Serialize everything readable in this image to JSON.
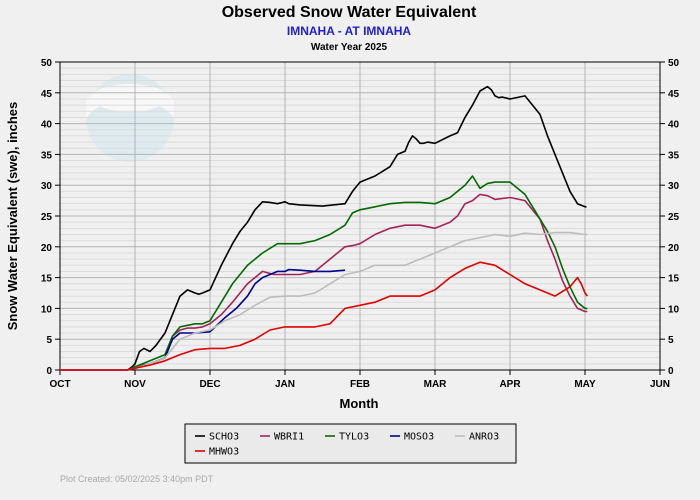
{
  "chart_data": {
    "type": "line",
    "title": "Observed Snow Water Equivalent",
    "subtitle": "IMNAHA - AT IMNAHA",
    "subtitle2": "Water Year 2025",
    "xlabel": "Month",
    "ylabel": "Snow Water Equivalent (swe),  inches",
    "categories": [
      "OCT",
      "NOV",
      "DEC",
      "JAN",
      "FEB",
      "MAR",
      "APR",
      "MAY",
      "JUN"
    ],
    "ylim": [
      0,
      50
    ],
    "y_ticks": [
      0,
      5,
      10,
      15,
      20,
      25,
      30,
      35,
      40,
      45,
      50
    ],
    "grid": true,
    "legend_position": "bottom",
    "footer": "Plot Created: 05/02/2025 3:40pm PDT",
    "series": [
      {
        "name": "SCHO3",
        "color": "#000000",
        "x": [
          0,
          0.9,
          0.96,
          1.0,
          1.06,
          1.12,
          1.2,
          1.28,
          1.4,
          1.5,
          1.6,
          1.7,
          1.8,
          1.85,
          1.9,
          2.0,
          2.15,
          2.3,
          2.4,
          2.5,
          2.6,
          2.7,
          2.8,
          2.9,
          3.0,
          3.05,
          3.2,
          3.5,
          3.8,
          3.9,
          4.0,
          4.2,
          4.4,
          4.5,
          4.6,
          4.65,
          4.7,
          4.75,
          4.8,
          4.85,
          4.9,
          5.0,
          5.2,
          5.3,
          5.4,
          5.5,
          5.6,
          5.7,
          5.75,
          5.8,
          5.85,
          5.9,
          6.0,
          6.2,
          6.3,
          6.4,
          6.5,
          6.6,
          6.7,
          6.8,
          6.9,
          7.0,
          7.02
        ],
        "values": [
          0,
          0,
          0.5,
          1,
          3,
          3.5,
          3,
          4,
          6,
          9,
          12,
          13,
          12.5,
          12.3,
          12.5,
          13,
          17,
          20.5,
          22.5,
          24,
          26,
          27.3,
          27.2,
          27,
          27.3,
          27,
          26.8,
          26.6,
          27,
          29,
          30.5,
          31.5,
          33,
          35,
          35.5,
          37,
          38,
          37.5,
          36.8,
          36.8,
          37,
          36.8,
          38,
          38.5,
          41,
          43,
          45.3,
          46,
          45.5,
          44.5,
          44.2,
          44.3,
          44,
          44.5,
          43,
          41.5,
          38,
          35,
          32,
          29,
          27,
          26.5,
          26.5
        ]
      },
      {
        "name": "WBRI1",
        "color": "#a4245a",
        "x": [
          0,
          0.9,
          1.0,
          1.2,
          1.4,
          1.5,
          1.6,
          1.7,
          1.8,
          1.9,
          2.0,
          2.15,
          2.3,
          2.5,
          2.7,
          2.85,
          3.0,
          3.2,
          3.4,
          3.6,
          3.8,
          3.9,
          4.0,
          4.2,
          4.4,
          4.6,
          4.8,
          5.0,
          5.2,
          5.3,
          5.4,
          5.5,
          5.6,
          5.7,
          5.8,
          6.0,
          6.2,
          6.4,
          6.5,
          6.6,
          6.7,
          6.8,
          6.9,
          7.0,
          7.03
        ],
        "values": [
          0,
          0,
          0.5,
          1,
          2,
          5.5,
          6.5,
          6.8,
          6.8,
          7,
          7.5,
          9,
          11,
          14,
          16,
          15.5,
          15.5,
          15.5,
          16,
          18,
          20,
          20.2,
          20.5,
          22,
          23,
          23.5,
          23.5,
          23,
          24,
          25,
          27,
          27.5,
          28.5,
          28.3,
          27.7,
          28,
          27.5,
          24.5,
          21,
          18,
          14.5,
          12,
          10,
          9.5,
          9.5
        ]
      },
      {
        "name": "TYLO3",
        "color": "#006a00",
        "x": [
          0,
          0.9,
          1.0,
          1.2,
          1.4,
          1.5,
          1.6,
          1.8,
          1.9,
          2.0,
          2.15,
          2.3,
          2.5,
          2.7,
          2.9,
          3.0,
          3.2,
          3.4,
          3.6,
          3.8,
          3.9,
          4.0,
          4.2,
          4.4,
          4.6,
          4.8,
          5.0,
          5.2,
          5.3,
          5.4,
          5.5,
          5.6,
          5.7,
          5.8,
          6.0,
          6.2,
          6.4,
          6.5,
          6.6,
          6.7,
          6.8,
          6.9,
          7.0,
          7.03
        ],
        "values": [
          0,
          0,
          0.5,
          1.5,
          2.5,
          5.5,
          7,
          7.5,
          7.5,
          8,
          11,
          14,
          17,
          19,
          20.5,
          20.5,
          20.5,
          21,
          22,
          23.5,
          25.5,
          26,
          26.5,
          27,
          27.2,
          27.2,
          27,
          28,
          29,
          30,
          31.5,
          29.5,
          30.3,
          30.5,
          30.5,
          28.5,
          24.5,
          22.5,
          20,
          16.5,
          13.5,
          11,
          10,
          10
        ]
      },
      {
        "name": "MOSO3",
        "color": "#00008c",
        "x": [
          0,
          0.9,
          1.0,
          1.2,
          1.4,
          1.5,
          1.6,
          1.7,
          1.8,
          2.0,
          2.2,
          2.35,
          2.5,
          2.6,
          2.7,
          2.8,
          2.9,
          3.0,
          3.05,
          3.2,
          3.4,
          3.6,
          3.8
        ],
        "values": [
          0,
          0,
          0.3,
          1,
          2,
          5,
          6,
          6,
          6,
          6.2,
          8.5,
          10,
          12,
          14,
          15,
          15.5,
          16,
          16,
          16.3,
          16.2,
          16,
          16,
          16.2
        ]
      },
      {
        "name": "ANRO3",
        "color": "#bcbcbc",
        "x": [
          0,
          0.9,
          1.0,
          1.2,
          1.4,
          1.6,
          1.8,
          2.0,
          2.2,
          2.4,
          2.6,
          2.8,
          3.0,
          3.2,
          3.4,
          3.6,
          3.8,
          4.0,
          4.2,
          4.4,
          4.6,
          4.8,
          5.0,
          5.2,
          5.4,
          5.6,
          5.8,
          6.0,
          6.2,
          6.4,
          6.6,
          6.8,
          7.0,
          7.03
        ],
        "values": [
          0,
          0,
          0.3,
          1,
          2,
          5,
          6,
          6.5,
          8,
          9,
          10.5,
          11.8,
          12,
          12,
          12.5,
          14,
          15.5,
          16,
          17,
          17,
          17,
          18,
          19,
          20,
          21,
          21.5,
          22,
          21.7,
          22.2,
          22,
          22.3,
          22.3,
          22,
          22
        ]
      },
      {
        "name": "MHWO3",
        "color": "#e00000",
        "x": [
          0,
          0.9,
          1.0,
          1.2,
          1.4,
          1.6,
          1.8,
          2.0,
          2.2,
          2.4,
          2.6,
          2.8,
          3.0,
          3.2,
          3.4,
          3.6,
          3.8,
          4.0,
          4.2,
          4.4,
          4.6,
          4.8,
          5.0,
          5.2,
          5.4,
          5.6,
          5.8,
          6.0,
          6.2,
          6.4,
          6.6,
          6.8,
          6.9,
          6.95,
          7.0,
          7.03
        ],
        "values": [
          0,
          0,
          0.3,
          0.8,
          1.5,
          2.5,
          3.3,
          3.5,
          3.5,
          4,
          5,
          6.5,
          7,
          7,
          7,
          7.5,
          10,
          10.5,
          11,
          12,
          12,
          12,
          13,
          15,
          16.5,
          17.5,
          17,
          15.5,
          14,
          13,
          12,
          13.5,
          15,
          14,
          12.5,
          12
        ]
      }
    ]
  }
}
